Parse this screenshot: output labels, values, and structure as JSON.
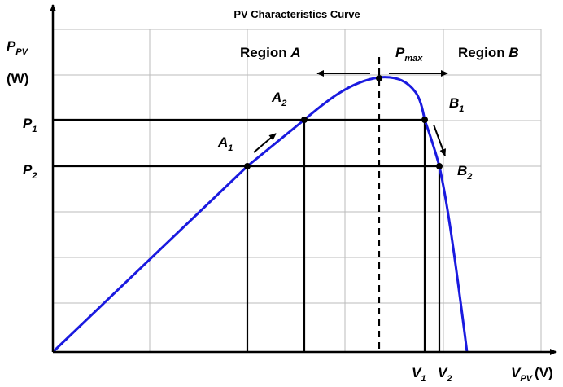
{
  "title": "PV Characteristics Curve",
  "y_axis_label": {
    "main": "P",
    "sub": "PV",
    "unit": "(W)"
  },
  "x_axis_label": {
    "main": "V",
    "sub": "PV",
    "unit": "(V)"
  },
  "region_a": {
    "text": "Region",
    "var": "A"
  },
  "region_b": {
    "text": "Region",
    "var": "B"
  },
  "points": {
    "pmax": {
      "main": "P",
      "sub": "max"
    },
    "a1": {
      "main": "A",
      "sub": "1"
    },
    "a2": {
      "main": "A",
      "sub": "2"
    },
    "b1": {
      "main": "B",
      "sub": "1"
    },
    "b2": {
      "main": "B",
      "sub": "2"
    }
  },
  "levels": {
    "p1": {
      "main": "P",
      "sub": "1"
    },
    "p2": {
      "main": "P",
      "sub": "2"
    },
    "v1": {
      "main": "V",
      "sub": "1"
    },
    "v2": {
      "main": "V",
      "sub": "2"
    }
  }
}
